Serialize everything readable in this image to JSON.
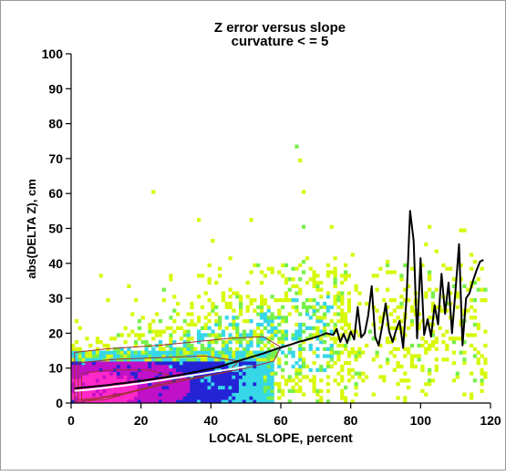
{
  "chart_data": {
    "type": "scatter",
    "title": "Z error versus slope",
    "subtitle": "curvature < = 5",
    "xlabel": "LOCAL SLOPE, percent",
    "ylabel": "abs(DELTA Z), cm",
    "xlim": [
      0,
      120
    ],
    "ylim": [
      0,
      100
    ],
    "x_ticks": [
      "0",
      "20",
      "40",
      "60",
      "80",
      "100",
      "120"
    ],
    "y_ticks": [
      "0",
      "10",
      "20",
      "30",
      "40",
      "50",
      "60",
      "70",
      "80",
      "90",
      "100"
    ],
    "density_colors": [
      "#d8f80a",
      "#76f04a",
      "#36d8e8",
      "#2424d6",
      "#c010c8",
      "#ff28c8"
    ],
    "contour_color": "#a03030",
    "series": [
      {
        "kind": "mean_line",
        "color": "#000000",
        "x": [
          1,
          3,
          5,
          7,
          9,
          11,
          13,
          15,
          17,
          19,
          21,
          23,
          25,
          27,
          29,
          31,
          33,
          35,
          37,
          39,
          41,
          43,
          45,
          47,
          49,
          51,
          53,
          55,
          57,
          59,
          61,
          63,
          65,
          67,
          69,
          71,
          73,
          75,
          76,
          77,
          78,
          79,
          80,
          81,
          82,
          83,
          84,
          85,
          86,
          87,
          88,
          89,
          90,
          91,
          92,
          93,
          94,
          95,
          96,
          97,
          98,
          99,
          100,
          101,
          102,
          103,
          104,
          105,
          106,
          107,
          108,
          109,
          110,
          111,
          112,
          113,
          114,
          115,
          116,
          117,
          118
        ],
        "y": [
          4.2,
          4.4,
          4.6,
          4.8,
          5.0,
          5.2,
          5.5,
          5.7,
          6.0,
          6.2,
          6.5,
          6.8,
          7.1,
          7.4,
          7.7,
          8.0,
          8.4,
          8.8,
          9.2,
          9.6,
          10.0,
          10.6,
          11.2,
          11.8,
          12.4,
          13.0,
          13.6,
          14.2,
          14.9,
          15.6,
          16.2,
          16.8,
          17.5,
          18.0,
          18.6,
          19.2,
          20.0,
          19.5,
          21.2,
          17.5,
          19.8,
          17.2,
          20.5,
          18.2,
          27.5,
          18.8,
          20.0,
          25.0,
          33.5,
          19.0,
          16.5,
          22.0,
          28.5,
          20.5,
          17.5,
          21.0,
          23.5,
          15.8,
          30.5,
          55.0,
          46.5,
          18.5,
          41.5,
          19.5,
          24.0,
          19.0,
          28.0,
          22.5,
          37.0,
          25.5,
          34.5,
          20.0,
          32.5,
          45.5,
          16.5,
          30.0,
          31.5,
          35.0,
          38.0,
          40.5,
          41.0
        ]
      },
      {
        "kind": "median_line",
        "color": "#ffffff",
        "x": [
          1,
          5,
          10,
          15,
          20,
          25,
          30,
          35,
          40,
          45,
          50
        ],
        "y": [
          3.5,
          3.8,
          4.4,
          5.0,
          5.7,
          6.4,
          7.2,
          8.0,
          8.8,
          9.6,
          10.5
        ]
      }
    ]
  }
}
